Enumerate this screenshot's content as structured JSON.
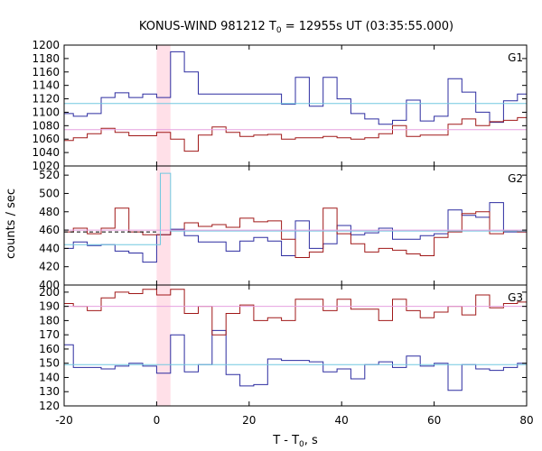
{
  "chart_data": {
    "type": "line",
    "title": "KONUS-WIND 981212 T",
    "title_sub": "0",
    "title_rest": " = 12955s UT (03:35:55.000)",
    "xlabel": "T - T",
    "xlabel_sub": "0",
    "xlabel_rest": ", s",
    "ylabel": "counts / sec",
    "xlim": [
      -20,
      80
    ],
    "xticks": [
      -20,
      0,
      20,
      40,
      60,
      80
    ],
    "xtick_labels": [
      "-20",
      "0",
      "20",
      "40",
      "60",
      "80"
    ],
    "highlight_interval": [
      0,
      3
    ],
    "colors": {
      "blue": "#2c2ca0",
      "red": "#a01818",
      "cyan": "#70c8e0",
      "pink": "#e6a0e0",
      "highlight": "#ffe0e8",
      "frame": "#000000"
    },
    "panels": [
      {
        "label": "G1",
        "ylim": [
          1020,
          1200
        ],
        "yticks": [
          1020,
          1040,
          1060,
          1080,
          1100,
          1120,
          1140,
          1160,
          1180,
          1200
        ],
        "ytick_labels": [
          "1020",
          "1040",
          "1060",
          "1080",
          "1100",
          "1120",
          "1140",
          "1160",
          "1180",
          "1200"
        ],
        "series": [
          {
            "color": "blue",
            "x": [
              -20,
              -18,
              -15,
              -12,
              -9,
              -6,
              -3,
              0,
              3,
              6,
              9,
              12,
              15,
              18,
              21,
              24,
              27,
              30,
              33,
              36,
              39,
              42,
              45,
              48,
              51,
              54,
              57,
              60,
              63,
              66,
              69,
              72,
              75,
              78,
              80
            ],
            "y": [
              1098,
              1094,
              1098,
              1122,
              1129,
              1122,
              1127,
              1122,
              1190,
              1160,
              1127,
              1127,
              1127,
              1127,
              1127,
              1127,
              1112,
              1152,
              1109,
              1152,
              1120,
              1098,
              1090,
              1082,
              1088,
              1118,
              1087,
              1094,
              1150,
              1130,
              1100,
              1085,
              1117,
              1127,
              1127
            ]
          },
          {
            "color": "red",
            "x": [
              -20,
              -18,
              -15,
              -12,
              -9,
              -6,
              -3,
              0,
              3,
              6,
              9,
              12,
              15,
              18,
              21,
              24,
              27,
              30,
              33,
              36,
              39,
              42,
              45,
              48,
              51,
              54,
              57,
              60,
              63,
              66,
              69,
              72,
              75,
              78,
              80
            ],
            "y": [
              1058,
              1062,
              1068,
              1076,
              1070,
              1065,
              1065,
              1070,
              1060,
              1042,
              1066,
              1078,
              1070,
              1064,
              1066,
              1067,
              1060,
              1062,
              1062,
              1064,
              1062,
              1060,
              1062,
              1068,
              1080,
              1064,
              1066,
              1066,
              1082,
              1090,
              1080,
              1086,
              1088,
              1092,
              1092
            ]
          },
          {
            "color": "cyan",
            "x": [
              -20,
              80
            ],
            "y": [
              1113,
              1113
            ]
          },
          {
            "color": "pink",
            "x": [
              -20,
              80
            ],
            "y": [
              1074,
              1074
            ]
          }
        ]
      },
      {
        "label": "G2",
        "ylim": [
          400,
          530
        ],
        "yticks": [
          400,
          420,
          440,
          460,
          480,
          500,
          520
        ],
        "ytick_labels": [
          "400",
          "420",
          "440",
          "460",
          "480",
          "500",
          "520"
        ],
        "series": [
          {
            "color": "blue",
            "x": [
              -20,
              -18,
              -15,
              -12,
              -9,
              -6,
              -3,
              0,
              3,
              6,
              9,
              12,
              15,
              18,
              21,
              24,
              27,
              30,
              33,
              36,
              39,
              42,
              45,
              48,
              51,
              54,
              57,
              60,
              63,
              66,
              69,
              72,
              75,
              78,
              80
            ],
            "y": [
              440,
              447,
              443,
              444,
              437,
              435,
              425,
              455,
              461,
              454,
              447,
              447,
              437,
              448,
              452,
              448,
              432,
              470,
              440,
              445,
              465,
              455,
              457,
              462,
              450,
              450,
              454,
              456,
              482,
              476,
              474,
              490,
              458,
              458,
              458
            ]
          },
          {
            "color": "red",
            "x": [
              -20,
              -18,
              -15,
              -12,
              -9,
              -6,
              -3,
              0,
              3,
              6,
              9,
              12,
              15,
              18,
              21,
              24,
              27,
              30,
              33,
              36,
              39,
              42,
              45,
              48,
              51,
              54,
              57,
              60,
              63,
              66,
              69,
              72,
              75,
              78,
              80
            ],
            "y": [
              458,
              462,
              456,
              462,
              484,
              458,
              455,
              455,
              460,
              468,
              464,
              466,
              463,
              473,
              469,
              470,
              450,
              430,
              436,
              484,
              456,
              445,
              436,
              440,
              438,
              434,
              432,
              452,
              458,
              478,
              480,
              456,
              459,
              458,
              458
            ]
          },
          {
            "color": "cyan",
            "x": [
              -20,
              -18,
              -15,
              -12,
              -9,
              -6,
              -3,
              0,
              0.8,
              3,
              80
            ],
            "y": [
              444,
              444,
              444,
              444,
              444,
              444,
              444,
              444,
              522,
              459,
              459
            ]
          },
          {
            "color": "pink",
            "x": [
              -20,
              80
            ],
            "y": [
              460,
              460
            ]
          }
        ]
      },
      {
        "label": "G3",
        "ylim": [
          120,
          205
        ],
        "yticks": [
          120,
          130,
          140,
          150,
          160,
          170,
          180,
          190,
          200
        ],
        "ytick_labels": [
          "120",
          "130",
          "140",
          "150",
          "160",
          "170",
          "180",
          "190",
          "200"
        ],
        "series": [
          {
            "color": "blue",
            "x": [
              -20,
              -18,
              -15,
              -12,
              -9,
              -6,
              -3,
              0,
              3,
              6,
              9,
              12,
              15,
              18,
              21,
              24,
              27,
              30,
              33,
              36,
              39,
              42,
              45,
              48,
              51,
              54,
              57,
              60,
              63,
              66,
              69,
              72,
              75,
              78,
              80
            ],
            "y": [
              163,
              147,
              147,
              146,
              148,
              150,
              148,
              143,
              170,
              144,
              149,
              173,
              142,
              134,
              135,
              153,
              152,
              152,
              151,
              144,
              146,
              139,
              149,
              151,
              147,
              155,
              148,
              150,
              131,
              149,
              146,
              145,
              147,
              150,
              150
            ]
          },
          {
            "color": "red",
            "x": [
              -20,
              -18,
              -15,
              -12,
              -9,
              -6,
              -3,
              0,
              3,
              6,
              9,
              12,
              15,
              18,
              21,
              24,
              27,
              30,
              33,
              36,
              39,
              42,
              45,
              48,
              51,
              54,
              57,
              60,
              63,
              66,
              69,
              72,
              75,
              78,
              80
            ],
            "y": [
              192,
              190,
              187,
              196,
              200,
              199,
              202,
              198,
              202,
              185,
              190,
              170,
              185,
              191,
              180,
              182,
              180,
              195,
              195,
              187,
              195,
              188,
              188,
              180,
              195,
              187,
              182,
              186,
              190,
              184,
              198,
              189,
              192,
              193,
              193
            ]
          },
          {
            "color": "cyan",
            "x": [
              -20,
              80
            ],
            "y": [
              149,
              149
            ]
          },
          {
            "color": "pink",
            "x": [
              -20,
              80
            ],
            "y": [
              190,
              190
            ]
          }
        ]
      }
    ]
  }
}
